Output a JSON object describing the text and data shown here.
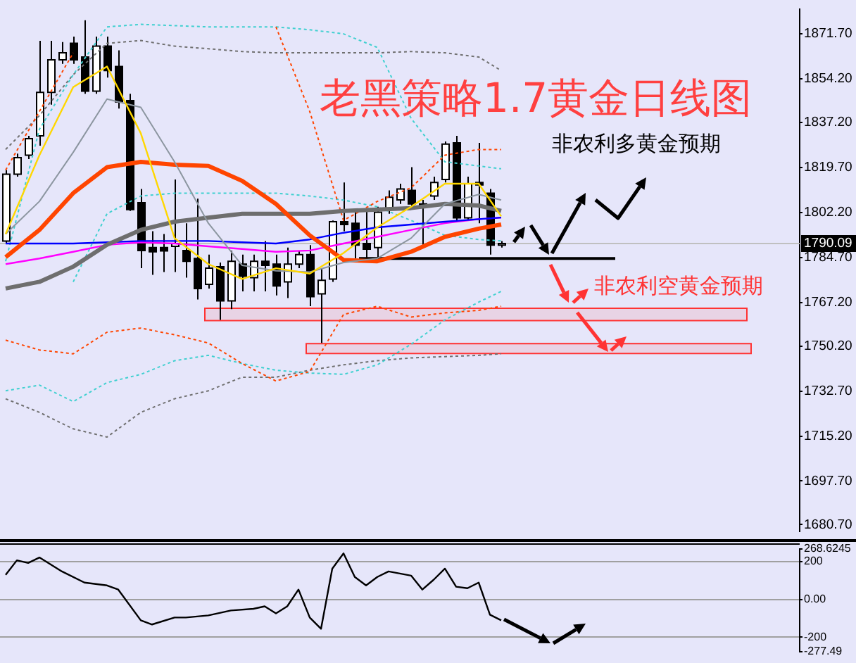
{
  "chart_data": [
    {
      "type": "candlestick",
      "title": "老黑策略1.7黄金日线图",
      "annotations": [
        "非农利多黄金预期",
        "非农利空黄金预期"
      ],
      "categories": [
        null,
        null,
        null,
        null,
        null,
        null,
        null,
        null,
        null,
        null,
        null,
        null,
        null,
        null,
        null,
        null,
        null,
        null,
        null,
        null,
        null,
        null,
        null,
        null,
        null,
        null,
        null,
        null,
        null,
        null,
        null,
        null,
        null,
        null,
        null,
        null,
        null,
        null,
        null,
        null,
        null,
        null,
        null,
        null,
        null,
        null,
        null,
        null,
        null,
        null,
        null,
        null,
        null,
        null,
        null,
        null,
        null,
        null,
        null,
        null,
        null,
        null,
        null,
        null,
        null,
        null,
        null,
        null,
        null,
        null,
        null
      ],
      "ohlc": [
        [
          1791.1,
          1818.7,
          1790.1,
          1817.1
        ],
        [
          1817.1,
          1825.1,
          1816.1,
          1823.5
        ],
        [
          1824.5,
          1832.0,
          1823.0,
          1830.9
        ],
        [
          1832.0,
          1869.0,
          1828.2,
          1848.9
        ],
        [
          1848.9,
          1869.0,
          1844.1,
          1861.6
        ],
        [
          1861.6,
          1868.5,
          1860.0,
          1864.3
        ],
        [
          1868.0,
          1870.6,
          1860.0,
          1861.6
        ],
        [
          1862.7,
          1877.0,
          1848.4,
          1849.4
        ],
        [
          1849.4,
          1870.6,
          1848.4,
          1866.9
        ],
        [
          1866.9,
          1870.6,
          1854.7,
          1857.4
        ],
        [
          1859.0,
          1865.3,
          1842.6,
          1845.2
        ],
        [
          1845.7,
          1848.4,
          1802.8,
          1803.3
        ],
        [
          1806.0,
          1811.3,
          1780.5,
          1787.4
        ],
        [
          1788.5,
          1794.9,
          1777.9,
          1786.9
        ],
        [
          1788.5,
          1793.8,
          1779.0,
          1787.2
        ],
        [
          1789.0,
          1815.0,
          1779.0,
          1790.1
        ],
        [
          1787.4,
          1798.0,
          1776.8,
          1783.2
        ],
        [
          1784.3,
          1807.6,
          1768.3,
          1772.6
        ],
        [
          1774.2,
          1785.8,
          1772.6,
          1780.5
        ],
        [
          1781.1,
          1782.7,
          1760.4,
          1767.8
        ],
        [
          1767.8,
          1787.4,
          1764.6,
          1783.2
        ],
        [
          1782.1,
          1785.8,
          1771.5,
          1777.4
        ],
        [
          1776.8,
          1785.8,
          1771.5,
          1783.2
        ],
        [
          1783.2,
          1791.1,
          1771.5,
          1781.6
        ],
        [
          1782.1,
          1785.8,
          1769.9,
          1773.6
        ],
        [
          1775.2,
          1788.5,
          1768.9,
          1782.1
        ],
        [
          1782.1,
          1787.4,
          1780.5,
          1785.8
        ],
        [
          1785.8,
          1789.5,
          1765.7,
          1769.4
        ],
        [
          1770.5,
          1780.5,
          1751.4,
          1775.8
        ],
        [
          1776.3,
          1799.1,
          1775.2,
          1798.6
        ],
        [
          1798.6,
          1813.9,
          1794.9,
          1797.5
        ],
        [
          1798.0,
          1803.3,
          1784.3,
          1789.5
        ],
        [
          1790.1,
          1802.8,
          1784.3,
          1787.9
        ],
        [
          1788.5,
          1804.4,
          1784.3,
          1802.3
        ],
        [
          1803.3,
          1810.8,
          1801.7,
          1808.1
        ],
        [
          1807.1,
          1813.4,
          1805.5,
          1811.3
        ],
        [
          1810.8,
          1819.8,
          1803.3,
          1805.5
        ],
        [
          1805.5,
          1807.1,
          1789.5,
          1804.4
        ],
        [
          1808.6,
          1816.1,
          1807.1,
          1813.9
        ],
        [
          1815.0,
          1829.8,
          1813.9,
          1828.8
        ],
        [
          1829.3,
          1832.0,
          1799.1,
          1800.1
        ],
        [
          1800.1,
          1816.1,
          1799.1,
          1813.4
        ],
        [
          1813.9,
          1829.3,
          1798.0,
          1812.9
        ],
        [
          1809.7,
          1811.3,
          1785.8,
          1789.5
        ],
        [
          1789.5,
          1791.1,
          1788.5,
          1790.1
        ],
        null,
        null,
        null,
        null,
        null,
        null,
        null,
        null,
        null,
        null,
        null,
        null,
        null,
        null,
        null,
        null,
        null,
        null,
        null,
        null,
        null,
        null,
        null,
        null,
        null,
        null
      ],
      "series": [
        {
          "type": "line",
          "color": "#ffd700",
          "line_style": "solid",
          "values": [
            1793.8,
            null,
            null,
            1824.5,
            null,
            null,
            1851.0,
            null,
            null,
            1859.0,
            null,
            null,
            1833.0,
            null,
            null,
            1792.2,
            null,
            null,
            1782.1,
            null,
            null,
            1776.3,
            null,
            null,
            1780.5,
            null,
            null,
            1778.4,
            null,
            null,
            1786.4,
            null,
            null,
            1796.4,
            null,
            null,
            1804.4,
            null,
            null,
            1813.4,
            null,
            null,
            1813.4,
            null,
            1800.7,
            null,
            null,
            null,
            null,
            null,
            null,
            null,
            null,
            null,
            null,
            null,
            null,
            null,
            null,
            null,
            null,
            null,
            null,
            null,
            null,
            null,
            null,
            null,
            null,
            null,
            null
          ]
        },
        {
          "type": "line",
          "color": "#8c96a0",
          "line_style": "solid",
          "values": [
            1793.8,
            null,
            null,
            1806.5,
            null,
            null,
            1825.6,
            null,
            null,
            1846.3,
            null,
            null,
            1843.1,
            null,
            null,
            1821.9,
            null,
            null,
            1798.0,
            null,
            null,
            1781.6,
            null,
            null,
            1779.5,
            null,
            null,
            1779.0,
            null,
            null,
            1782.7,
            null,
            null,
            1784.3,
            null,
            null,
            1792.2,
            null,
            null,
            1805.5,
            null,
            null,
            1809.2,
            null,
            1807.0,
            null,
            null,
            null,
            null,
            null,
            null,
            null,
            null,
            null,
            null,
            null,
            null,
            null,
            null,
            null,
            null,
            null,
            null,
            null,
            null,
            null,
            null,
            null,
            null,
            null,
            null
          ]
        },
        {
          "type": "line",
          "color": "#ff4500",
          "line_style": "solid",
          "values": [
            1784.8,
            null,
            null,
            1795.4,
            null,
            null,
            1809.7,
            null,
            null,
            1819.8,
            null,
            null,
            1821.9,
            null,
            null,
            1820.8,
            null,
            null,
            1820.3,
            null,
            null,
            1814.5,
            null,
            null,
            1805.5,
            null,
            null,
            1793.3,
            null,
            null,
            1783.7,
            null,
            null,
            1783.2,
            null,
            null,
            1786.9,
            null,
            null,
            1792.7,
            null,
            null,
            1795.9,
            null,
            1797.5,
            null,
            null,
            null,
            null,
            null,
            null,
            null,
            null,
            null,
            null,
            null,
            null,
            null,
            null,
            null,
            null,
            null,
            null,
            null,
            null,
            null,
            null,
            null,
            null,
            null,
            null
          ]
        },
        {
          "type": "line",
          "color": "#6e6e6e",
          "line_style": "solid",
          "values": [
            1772.6,
            null,
            null,
            1775.2,
            null,
            null,
            1781.1,
            null,
            null,
            1789.6,
            null,
            null,
            1795.4,
            null,
            null,
            1798.6,
            null,
            null,
            1800.2,
            null,
            null,
            1801.7,
            null,
            null,
            1801.7,
            null,
            null,
            1801.7,
            null,
            null,
            1802.8,
            null,
            null,
            1803.3,
            null,
            null,
            1803.9,
            null,
            null,
            1805.5,
            null,
            null,
            1804.9,
            null,
            1802.8,
            null,
            null,
            null,
            null,
            null,
            null,
            null,
            null,
            null,
            null,
            null,
            null,
            null,
            null,
            null,
            null,
            null,
            null,
            null,
            null,
            null,
            null,
            null,
            null,
            null,
            null
          ]
        },
        {
          "type": "line",
          "color": "#0000ff",
          "line_style": "solid",
          "values": [
            1790.1,
            null,
            null,
            1790.1,
            null,
            null,
            1790.1,
            null,
            null,
            1790.6,
            null,
            null,
            1791.1,
            null,
            null,
            1791.1,
            null,
            null,
            1791.1,
            null,
            null,
            1790.6,
            null,
            null,
            1790.1,
            null,
            null,
            1791.7,
            null,
            null,
            1794.3,
            null,
            null,
            1796.4,
            null,
            null,
            1797.5,
            null,
            null,
            1798.6,
            null,
            null,
            1799.6,
            null,
            1800.2,
            null,
            null,
            null,
            null,
            null,
            null,
            null,
            null,
            null,
            null,
            null,
            null,
            null,
            null,
            null,
            null,
            null,
            null,
            null,
            null,
            null,
            null,
            null,
            null,
            null,
            null
          ]
        },
        {
          "type": "line",
          "color": "#ff00ff",
          "line_style": "solid",
          "values": [
            1782.1,
            null,
            null,
            1784.3,
            null,
            null,
            1786.9,
            null,
            null,
            1789.6,
            null,
            null,
            1790.6,
            null,
            null,
            1790.1,
            null,
            null,
            1789.0,
            null,
            null,
            1788.0,
            null,
            null,
            1786.9,
            null,
            null,
            1787.4,
            null,
            null,
            1790.1,
            null,
            null,
            1792.7,
            null,
            null,
            1795.4,
            null,
            null,
            1798.0,
            null,
            null,
            1799.6,
            null,
            1800.2,
            null,
            null,
            null,
            null,
            null,
            null,
            null,
            null,
            null,
            null,
            null,
            null,
            null,
            null,
            null,
            null,
            null,
            null,
            null,
            null,
            null,
            null,
            null,
            null,
            null,
            null
          ]
        },
        {
          "type": "line",
          "color": "#ff4500",
          "line_style": "dashed",
          "values": [
            1818.7,
            null,
            null,
            1841.5,
            null,
            null,
            1864.3,
            null,
            null,
            null,
            null,
            null,
            null,
            null,
            null,
            null,
            null,
            null,
            null,
            null,
            null,
            null,
            null,
            null,
            1874.4,
            null,
            null,
            1841.5,
            null,
            null,
            1799.1,
            null,
            null,
            1806.5,
            null,
            null,
            1811.8,
            null,
            null,
            1824.5,
            null,
            null,
            1826.7,
            null,
            1826.7,
            null,
            null,
            null,
            null,
            null,
            null,
            null,
            null,
            null,
            null,
            null,
            null,
            null,
            null,
            null,
            null,
            null,
            null,
            null,
            null,
            null,
            null,
            null,
            null,
            null,
            null
          ]
        },
        {
          "type": "line",
          "color": "#ff4500",
          "line_style": "dashed",
          "values": [
            1752.5,
            null,
            null,
            1748.7,
            null,
            null,
            1747.2,
            null,
            null,
            1755.6,
            null,
            null,
            1757.2,
            null,
            null,
            1754.6,
            null,
            null,
            1751.4,
            null,
            null,
            1743.4,
            null,
            null,
            1736.6,
            null,
            null,
            1740.3,
            null,
            null,
            1762.5,
            null,
            null,
            1765.7,
            null,
            null,
            1761.5,
            null,
            null,
            1763.1,
            null,
            null,
            1764.1,
            null,
            1765.7,
            null,
            null,
            null,
            null,
            null,
            null,
            null,
            null,
            null,
            null,
            null,
            null,
            null,
            null,
            null,
            null,
            null,
            null,
            null,
            null,
            null,
            null,
            null,
            null,
            null,
            null
          ]
        },
        {
          "type": "line",
          "color": "#40d0d0",
          "line_style": "dashed",
          "values": [
            1783.2,
            null,
            null,
            1834.6,
            null,
            null,
            1855.8,
            null,
            null,
            1874.4,
            null,
            null,
            1875.4,
            null,
            null,
            1874.9,
            null,
            null,
            1874.4,
            null,
            null,
            1874.4,
            null,
            null,
            1874.4,
            null,
            null,
            1873.3,
            null,
            null,
            1871.7,
            null,
            null,
            1866.4,
            null,
            null,
            1838.8,
            null,
            null,
            1821.9,
            null,
            null,
            1820.3,
            null,
            1819.2,
            null,
            null,
            null,
            null,
            null,
            null,
            null,
            null,
            null,
            null,
            null,
            null,
            null,
            null,
            null,
            null,
            null,
            null,
            null,
            null,
            null,
            null,
            null,
            null,
            null,
            null
          ]
        },
        {
          "type": "line",
          "color": "#40d0d0",
          "line_style": "dashed",
          "values": [
            null,
            null,
            null,
            null,
            null,
            null,
            1775.2,
            null,
            null,
            1801.7,
            null,
            null,
            1808.6,
            null,
            null,
            1809.7,
            null,
            null,
            1809.7,
            null,
            null,
            1809.7,
            null,
            null,
            1809.7,
            null,
            null,
            1808.6,
            null,
            null,
            1807.0,
            null,
            null,
            1804.4,
            null,
            null,
            1799.1,
            null,
            null,
            1793.3,
            null,
            null,
            1791.7,
            null,
            1791.1,
            null,
            null,
            null,
            null,
            null,
            null,
            null,
            null,
            null,
            null,
            null,
            null,
            null,
            null,
            null,
            null,
            null,
            null,
            null,
            null,
            null,
            null,
            null,
            null,
            null,
            null
          ]
        },
        {
          "type": "line",
          "color": "#40d0d0",
          "line_style": "dashed",
          "values": [
            1732.8,
            null,
            null,
            1735.0,
            null,
            null,
            1728.6,
            null,
            null,
            1736.0,
            null,
            null,
            1739.2,
            null,
            null,
            1744.5,
            null,
            null,
            1746.6,
            null,
            null,
            1743.4,
            null,
            null,
            1740.8,
            null,
            null,
            1739.7,
            null,
            null,
            1739.2,
            null,
            null,
            1742.9,
            null,
            null,
            1750.9,
            null,
            null,
            1760.4,
            null,
            null,
            1767.3,
            null,
            1771.5,
            null,
            null,
            null,
            null,
            null,
            null,
            null,
            null,
            null,
            null,
            null,
            null,
            null,
            null,
            null,
            null,
            null,
            null,
            null,
            null,
            null,
            null,
            null,
            null,
            null,
            null
          ]
        },
        {
          "type": "line",
          "color": "#707070",
          "line_style": "dashed",
          "values": [
            1826.7,
            null,
            null,
            1839.9,
            null,
            null,
            1855.8,
            null,
            null,
            1868.0,
            null,
            null,
            1869.1,
            null,
            null,
            1866.9,
            null,
            null,
            1865.9,
            null,
            null,
            1864.8,
            null,
            null,
            1864.3,
            null,
            null,
            1864.3,
            null,
            null,
            1864.3,
            null,
            null,
            1864.3,
            null,
            null,
            1864.8,
            null,
            null,
            1864.3,
            null,
            null,
            1862.7,
            null,
            1857.4,
            null,
            null,
            null,
            null,
            null,
            null,
            null,
            null,
            null,
            null,
            null,
            null,
            null,
            null,
            null,
            null,
            null,
            null,
            null,
            null,
            null,
            null,
            null,
            null,
            null,
            null
          ]
        },
        {
          "type": "line",
          "color": "#707070",
          "line_style": "dashed",
          "values": [
            1729.7,
            null,
            null,
            1724.4,
            null,
            null,
            1718.0,
            null,
            null,
            1714.8,
            null,
            null,
            1724.4,
            null,
            null,
            1729.7,
            null,
            null,
            1732.8,
            null,
            null,
            1738.1,
            null,
            null,
            1738.1,
            null,
            null,
            1740.8,
            null,
            null,
            1742.9,
            null,
            null,
            1744.5,
            null,
            null,
            1745.6,
            null,
            null,
            1746.1,
            null,
            null,
            1746.6,
            null,
            1747.2,
            null,
            null,
            null,
            null,
            null,
            null,
            null,
            null,
            null,
            null,
            null,
            null,
            null,
            null,
            null,
            null,
            null,
            null,
            null,
            null,
            null,
            null,
            null,
            null,
            null,
            null
          ]
        }
      ],
      "ylim": [
        1678.2,
        1881.2
      ],
      "yticks": [
        {
          "value": 1680.7,
          "label": "1680.70"
        },
        {
          "value": 1697.7,
          "label": "1697.70"
        },
        {
          "value": 1715.2,
          "label": "1715.20"
        },
        {
          "value": 1732.7,
          "label": "1732.70"
        },
        {
          "value": 1750.2,
          "label": "1750.20"
        },
        {
          "value": 1767.2,
          "label": "1767.20"
        },
        {
          "value": 1784.7,
          "label": "1784.70"
        },
        {
          "value": 1802.2,
          "label": "1802.20"
        },
        {
          "value": 1819.7,
          "label": "1819.70"
        },
        {
          "value": 1837.2,
          "label": "1837.20"
        },
        {
          "value": 1854.2,
          "label": "1854.20"
        },
        {
          "value": 1871.7,
          "label": "1871.70"
        }
      ],
      "ref_lines": [
        {
          "axis": "y",
          "value": 1790.09,
          "label": "1790.09",
          "color": "#c0c0c0"
        },
        {
          "axis": "y",
          "value": 1784.3,
          "label": null,
          "color": "#000000"
        }
      ],
      "bands": [
        {
          "axis": "y",
          "from": 1760.4,
          "to": 1765.2,
          "label": null,
          "color": "#ff3333"
        },
        {
          "axis": "y",
          "from": 1747.6,
          "to": 1751.4,
          "label": null,
          "color": "#ff3333"
        }
      ],
      "tick_labels": "y",
      "grid": false,
      "legend": false
    },
    {
      "type": "line",
      "categories": [
        null,
        null,
        null,
        null,
        null,
        null,
        null,
        null,
        null,
        null,
        null,
        null,
        null,
        null,
        null,
        null,
        null,
        null,
        null,
        null,
        null,
        null,
        null,
        null,
        null,
        null,
        null,
        null,
        null,
        null,
        null,
        null,
        null,
        null,
        null,
        null,
        null,
        null,
        null,
        null,
        null,
        null,
        null,
        null,
        null,
        null,
        null,
        null,
        null,
        null,
        null,
        null,
        null,
        null,
        null,
        null,
        null,
        null,
        null,
        null,
        null,
        null,
        null,
        null,
        null,
        null,
        null,
        null,
        null,
        null,
        null
      ],
      "series": [
        {
          "color": "#000000",
          "values": [
            130,
            207,
            193,
            222,
            null,
            148,
            null,
            89,
            null,
            74,
            52,
            null,
            -111,
            -133,
            null,
            -96,
            -96,
            null,
            -85,
            null,
            -59,
            null,
            -50,
            -37,
            -74,
            -37,
            52,
            -96,
            -156,
            163,
            244,
            119,
            74,
            119,
            148,
            null,
            126,
            52,
            104,
            163,
            67,
            59,
            89,
            -81,
            -111,
            null,
            null,
            null,
            null,
            null,
            null,
            null,
            null,
            null,
            null,
            null,
            null,
            null,
            null,
            null,
            null,
            null,
            null,
            null,
            null,
            null,
            null,
            null,
            null,
            null,
            null
          ]
        }
      ],
      "ylim": [
        -277.49,
        268.6245
      ],
      "yticks": [
        {
          "value": -277.49,
          "label": "-277.49"
        },
        {
          "value": -200,
          "label": "-200"
        },
        {
          "value": 0,
          "label": "0.00"
        },
        {
          "value": 200,
          "label": "200"
        },
        {
          "value": 268.6245,
          "label": "268.6245"
        }
      ],
      "grid": "y",
      "tick_labels": "y",
      "legend": false
    }
  ]
}
